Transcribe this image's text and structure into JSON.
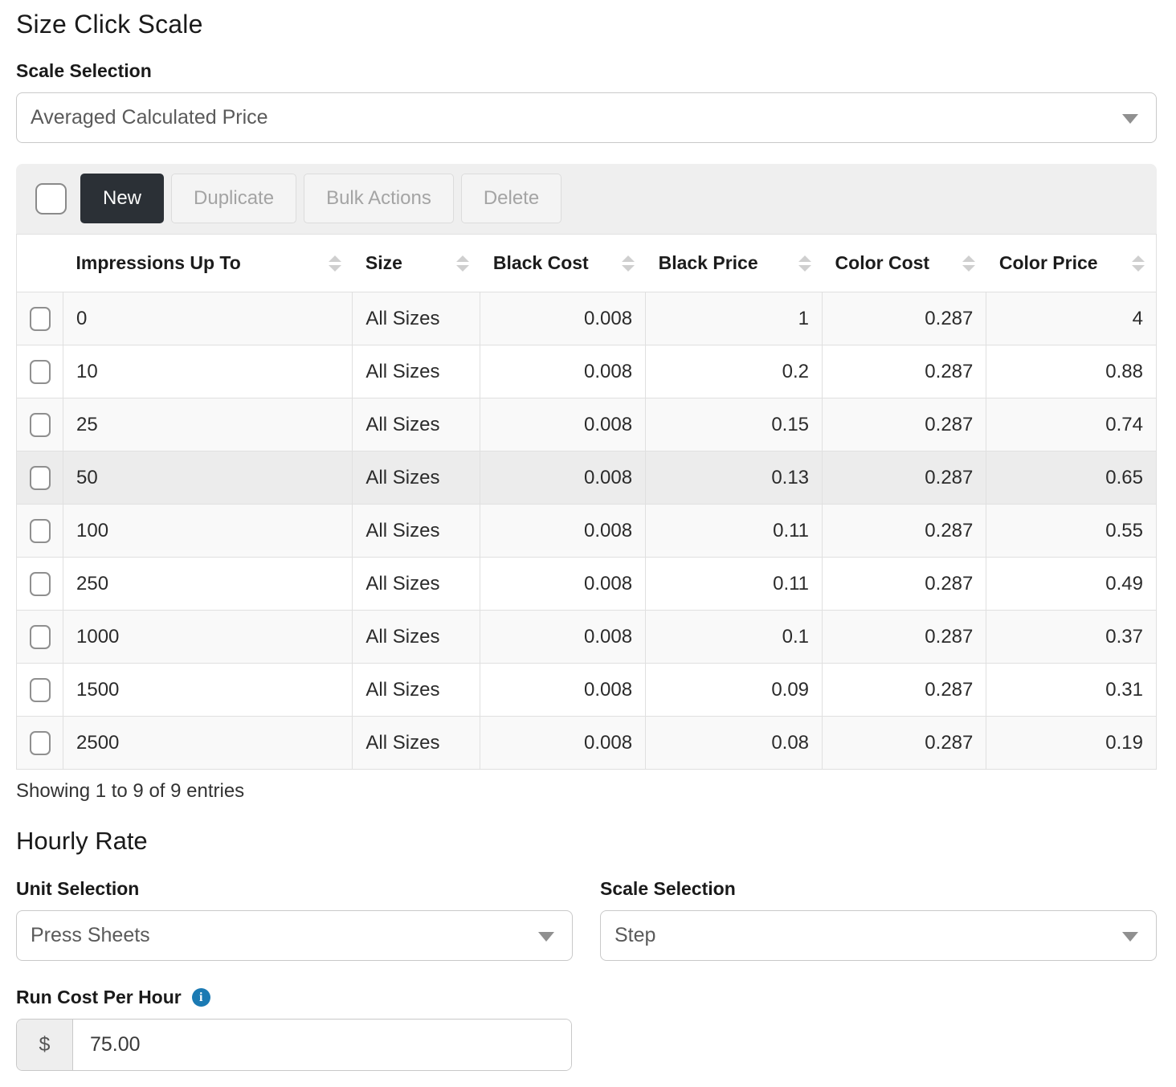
{
  "page": {
    "title": "Size Click Scale"
  },
  "scale_selection": {
    "label": "Scale Selection",
    "value": "Averaged Calculated Price"
  },
  "toolbar": {
    "new_label": "New",
    "duplicate_label": "Duplicate",
    "bulk_actions_label": "Bulk Actions",
    "delete_label": "Delete"
  },
  "table": {
    "columns": [
      "Impressions Up To",
      "Size",
      "Black Cost",
      "Black Price",
      "Color Cost",
      "Color Price"
    ],
    "rows": [
      [
        "0",
        "All Sizes",
        "0.008",
        "1",
        "0.287",
        "4"
      ],
      [
        "10",
        "All Sizes",
        "0.008",
        "0.2",
        "0.287",
        "0.88"
      ],
      [
        "25",
        "All Sizes",
        "0.008",
        "0.15",
        "0.287",
        "0.74"
      ],
      [
        "50",
        "All Sizes",
        "0.008",
        "0.13",
        "0.287",
        "0.65"
      ],
      [
        "100",
        "All Sizes",
        "0.008",
        "0.11",
        "0.287",
        "0.55"
      ],
      [
        "250",
        "All Sizes",
        "0.008",
        "0.11",
        "0.287",
        "0.49"
      ],
      [
        "1000",
        "All Sizes",
        "0.008",
        "0.1",
        "0.287",
        "0.37"
      ],
      [
        "1500",
        "All Sizes",
        "0.008",
        "0.09",
        "0.287",
        "0.31"
      ],
      [
        "2500",
        "All Sizes",
        "0.008",
        "0.08",
        "0.287",
        "0.19"
      ]
    ],
    "highlighted_row_index": 3,
    "footer": "Showing 1 to 9 of 9 entries"
  },
  "hourly_rate": {
    "title": "Hourly Rate",
    "unit_selection": {
      "label": "Unit Selection",
      "value": "Press Sheets"
    },
    "scale_selection": {
      "label": "Scale Selection",
      "value": "Step"
    },
    "run_cost": {
      "label": "Run Cost Per Hour",
      "currency_symbol": "$",
      "value": "75.00",
      "info_glyph": "i"
    }
  },
  "colors": {
    "primary_button_bg": "#2b3036",
    "info_icon_blue": "#1b7ab3",
    "row_stripe": "#f9f9f9",
    "row_highlight": "#ececec",
    "toolbar_bg": "#efefef"
  }
}
